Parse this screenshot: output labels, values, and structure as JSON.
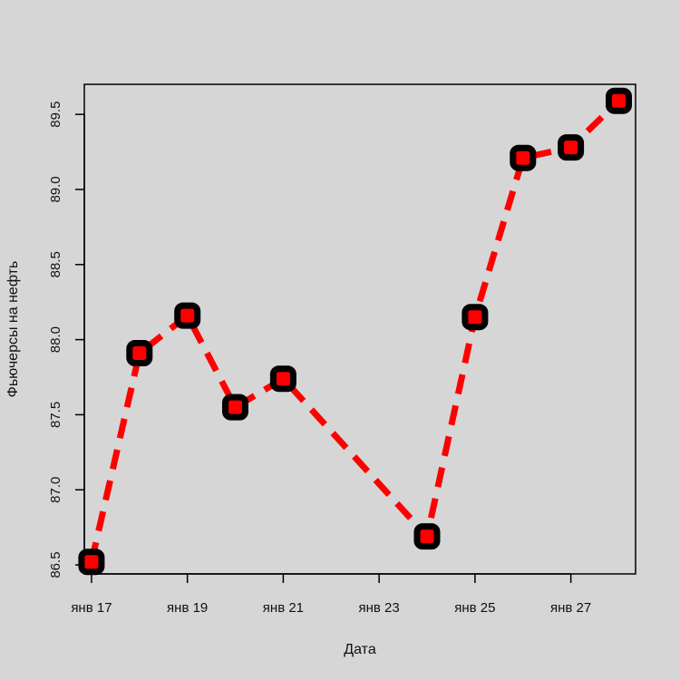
{
  "chart_data": {
    "type": "line",
    "title": "",
    "xlabel": "Дата",
    "ylabel": "Фьючерсы на нефть",
    "x_day_range": [
      16.85,
      28.35
    ],
    "ylim": [
      86.44,
      89.7
    ],
    "x_ticks": [
      {
        "day": 17,
        "label": "янв 17"
      },
      {
        "day": 19,
        "label": "янв 19"
      },
      {
        "day": 21,
        "label": "янв 21"
      },
      {
        "day": 23,
        "label": "янв 23"
      },
      {
        "day": 25,
        "label": "янв 25"
      },
      {
        "day": 27,
        "label": "янв 27"
      }
    ],
    "y_ticks": [
      {
        "value": 86.5,
        "label": "86.5"
      },
      {
        "value": 87.0,
        "label": "87.0"
      },
      {
        "value": 87.5,
        "label": "87.5"
      },
      {
        "value": 88.0,
        "label": "88.0"
      },
      {
        "value": 88.5,
        "label": "88.5"
      },
      {
        "value": 89.0,
        "label": "89.0"
      },
      {
        "value": 89.5,
        "label": "89.5"
      }
    ],
    "series": [
      {
        "points": [
          {
            "day": 17,
            "value": 86.52
          },
          {
            "day": 18,
            "value": 87.91
          },
          {
            "day": 19,
            "value": 88.16
          },
          {
            "day": 20,
            "value": 87.55
          },
          {
            "day": 21,
            "value": 87.74
          },
          {
            "day": 24,
            "value": 86.69
          },
          {
            "day": 25,
            "value": 88.15
          },
          {
            "day": 26,
            "value": 89.21
          },
          {
            "day": 27,
            "value": 89.28
          },
          {
            "day": 28,
            "value": 89.59
          }
        ]
      }
    ],
    "line_color": "#ff0000",
    "marker_edge_color": "#000000",
    "marker_fill_color": "#ff0000",
    "background_color": "#d6d6d6",
    "grid": false,
    "legend": "none"
  }
}
